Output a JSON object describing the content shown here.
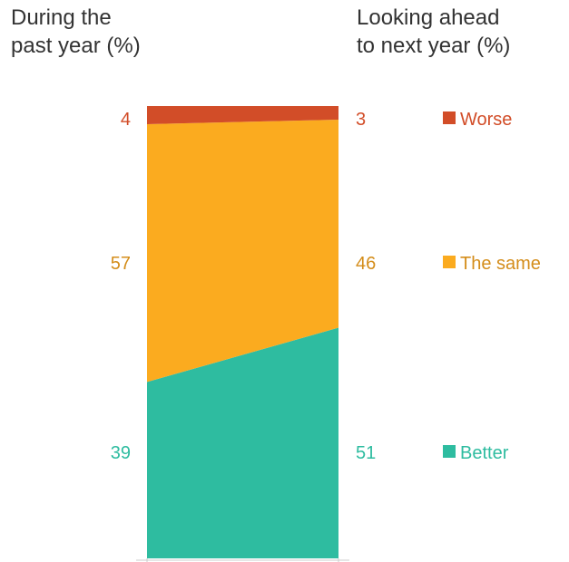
{
  "headers": {
    "left": [
      "During the",
      "past year (%)"
    ],
    "right": [
      "Looking ahead",
      "to next year (%)"
    ]
  },
  "colors": {
    "worse": "#d24d28",
    "same": "#fbab1f",
    "better": "#2ebca0",
    "same_label": "#d48d1a",
    "axis": "#cccccc"
  },
  "chart_data": {
    "type": "area",
    "x": [
      "During the past year (%)",
      "Looking ahead to next year (%)"
    ],
    "series": [
      {
        "name": "Worse",
        "values": [
          4,
          3
        ]
      },
      {
        "name": "The same",
        "values": [
          57,
          46
        ]
      },
      {
        "name": "Better",
        "values": [
          39,
          51
        ]
      }
    ],
    "stacked": true,
    "ylim": [
      0,
      100
    ],
    "legend": "right",
    "grid": false
  }
}
